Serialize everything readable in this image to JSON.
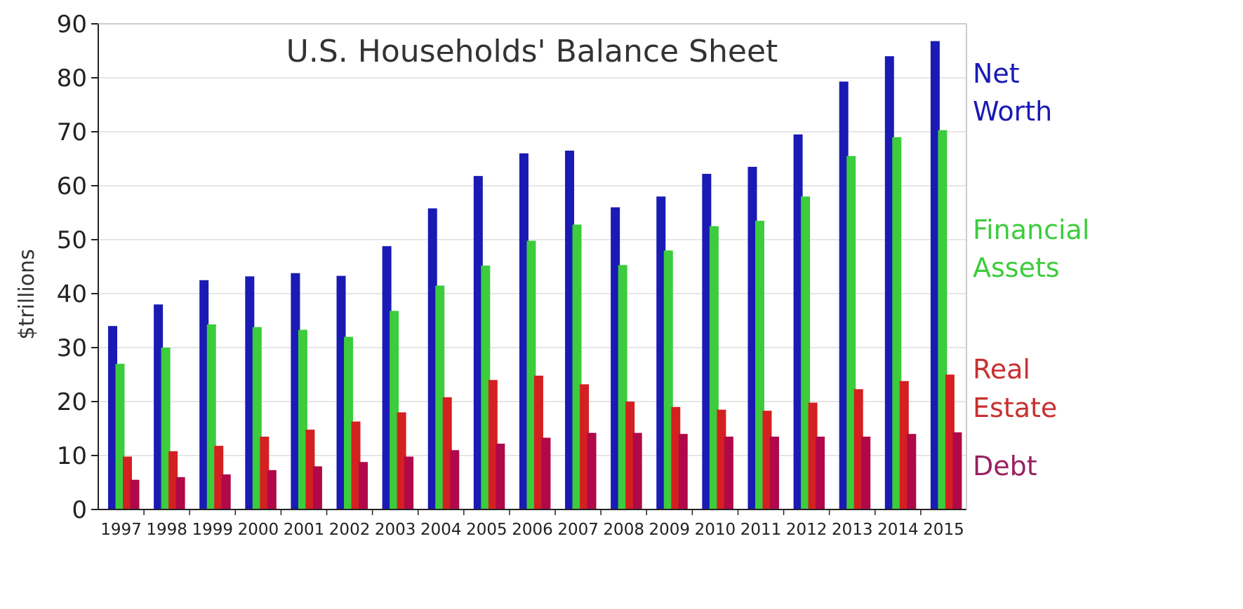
{
  "chart_data": {
    "type": "bar",
    "title": "U.S. Households' Balance Sheet",
    "xlabel": "",
    "ylabel": "$trillions",
    "ylim": [
      0,
      90
    ],
    "yticks": [
      0,
      10,
      20,
      30,
      40,
      50,
      60,
      70,
      80,
      90
    ],
    "grid": true,
    "legend_placement": "right",
    "categories": [
      "1997",
      "1998",
      "1999",
      "2000",
      "2001",
      "2002",
      "2003",
      "2004",
      "2005",
      "2006",
      "2007",
      "2008",
      "2009",
      "2010",
      "2011",
      "2012",
      "2013",
      "2014",
      "2015"
    ],
    "series": [
      {
        "name": "Net Worth",
        "color": "#1a1ab4",
        "values": [
          34,
          38,
          42.5,
          43.2,
          43.8,
          43.3,
          48.8,
          55.8,
          61.8,
          66,
          66.5,
          56,
          58,
          62.2,
          63.5,
          69.5,
          79.3,
          84,
          86.8
        ]
      },
      {
        "name": "Financial Assets",
        "color": "#3ccc3c",
        "values": [
          27,
          30,
          34.3,
          33.8,
          33.3,
          32,
          36.8,
          41.5,
          45.2,
          49.8,
          52.8,
          45.3,
          48,
          52.5,
          53.5,
          58,
          65.5,
          69,
          70.3
        ]
      },
      {
        "name": "Real Estate",
        "color": "#d42020",
        "values": [
          9.8,
          10.8,
          11.8,
          13.5,
          14.8,
          16.3,
          18,
          20.8,
          24,
          24.8,
          23.2,
          20,
          19,
          18.5,
          18.3,
          19.8,
          22.3,
          23.8,
          25
        ]
      },
      {
        "name": "Debt",
        "color": "#b00848",
        "values": [
          5.5,
          6,
          6.5,
          7.3,
          8,
          8.8,
          9.8,
          11,
          12.2,
          13.3,
          14.2,
          14.2,
          14,
          13.5,
          13.5,
          13.5,
          13.5,
          14,
          14.3
        ]
      }
    ],
    "legend": [
      {
        "lines": [
          "Net",
          "Worth"
        ],
        "color": "#1a1ab4"
      },
      {
        "lines": [
          "Financial",
          "Assets"
        ],
        "color": "#3ccc3c"
      },
      {
        "lines": [
          "Real",
          "Estate"
        ],
        "color": "#c83030"
      },
      {
        "lines": [
          "Debt"
        ],
        "color": "#9a2060"
      }
    ],
    "axis_color": "#222222",
    "grid_color": "#e6e6e6"
  }
}
